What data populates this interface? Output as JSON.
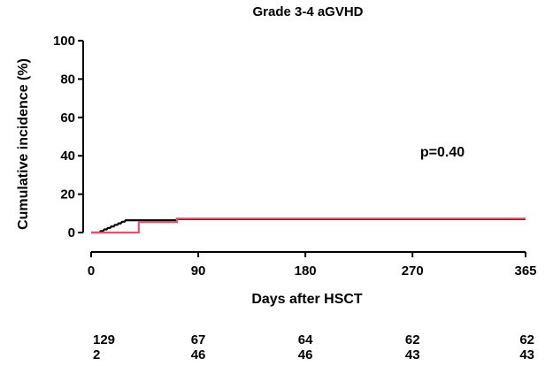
{
  "chart_data": {
    "type": "line",
    "title": "Grade 3-4 aGVHD",
    "xlabel": "Days after HSCT",
    "ylabel": "Cumulative incidence (%)",
    "xlim": [
      0,
      365
    ],
    "ylim": [
      0,
      100
    ],
    "x_ticks": [
      0,
      90,
      180,
      270,
      365
    ],
    "y_ticks": [
      0,
      20,
      40,
      60,
      80,
      100
    ],
    "grid": false,
    "step": true,
    "annotation": "p=0.40",
    "series": [
      {
        "color": "#000000",
        "points": [
          [
            0,
            0
          ],
          [
            7,
            0
          ],
          [
            8,
            0.8
          ],
          [
            10,
            0.8
          ],
          [
            11,
            1.6
          ],
          [
            13,
            1.6
          ],
          [
            14,
            2.4
          ],
          [
            16,
            2.4
          ],
          [
            17,
            3.2
          ],
          [
            19,
            3.2
          ],
          [
            20,
            4.0
          ],
          [
            22,
            4.0
          ],
          [
            23,
            4.8
          ],
          [
            25,
            4.8
          ],
          [
            26,
            5.6
          ],
          [
            28,
            5.6
          ],
          [
            29,
            6.4
          ],
          [
            72,
            6.4
          ],
          [
            72,
            7.0
          ],
          [
            365,
            7.0
          ]
        ]
      },
      {
        "color": "#e0546a",
        "points": [
          [
            0,
            0
          ],
          [
            40,
            0
          ],
          [
            40,
            5.5
          ],
          [
            72,
            5.5
          ],
          [
            72,
            7.3
          ],
          [
            365,
            7.3
          ]
        ]
      }
    ],
    "risk_table": {
      "x": [
        0,
        90,
        180,
        270,
        365
      ],
      "rows": [
        [
          "129",
          "67",
          "64",
          "62",
          "62"
        ],
        [
          "2",
          "46",
          "46",
          "43",
          "43"
        ]
      ]
    }
  }
}
